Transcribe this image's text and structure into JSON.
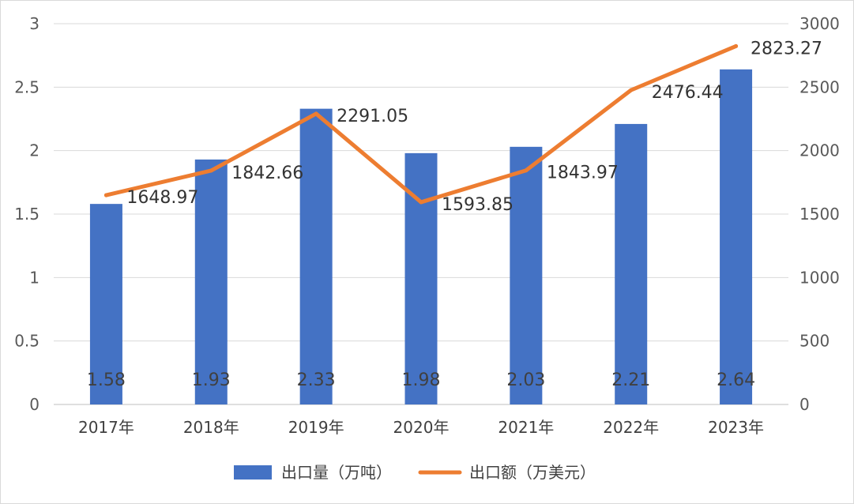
{
  "chart_data": {
    "type": "bar+line",
    "categories": [
      "2017年",
      "2018年",
      "2019年",
      "2020年",
      "2021年",
      "2022年",
      "2023年"
    ],
    "series": [
      {
        "name": "出口量（万吨）",
        "type": "bar",
        "axis": "left",
        "color": "#4472C4",
        "values": [
          1.58,
          1.93,
          2.33,
          1.98,
          2.03,
          2.21,
          2.64
        ],
        "labels": [
          "1.58",
          "1.93",
          "2.33",
          "1.98",
          "2.03",
          "2.21",
          "2.64"
        ]
      },
      {
        "name": "出口额（万美元）",
        "type": "line",
        "axis": "right",
        "color": "#ED7D31",
        "values": [
          1648.97,
          1842.66,
          2291.05,
          1593.85,
          1843.97,
          2476.44,
          2823.27
        ],
        "labels": [
          "1648.97",
          "1842.66",
          "2291.05",
          "1593.85",
          "1843.97",
          "2476.44",
          "2823.27"
        ]
      }
    ],
    "y_left": {
      "min": 0,
      "max": 3,
      "ticks": [
        "0",
        "0.5",
        "1",
        "1.5",
        "2",
        "2.5",
        "3"
      ]
    },
    "y_right": {
      "min": 0,
      "max": 3000,
      "ticks": [
        "0",
        "500",
        "1000",
        "1500",
        "2000",
        "2500",
        "3000"
      ]
    },
    "grid": true,
    "legend_position": "bottom"
  }
}
